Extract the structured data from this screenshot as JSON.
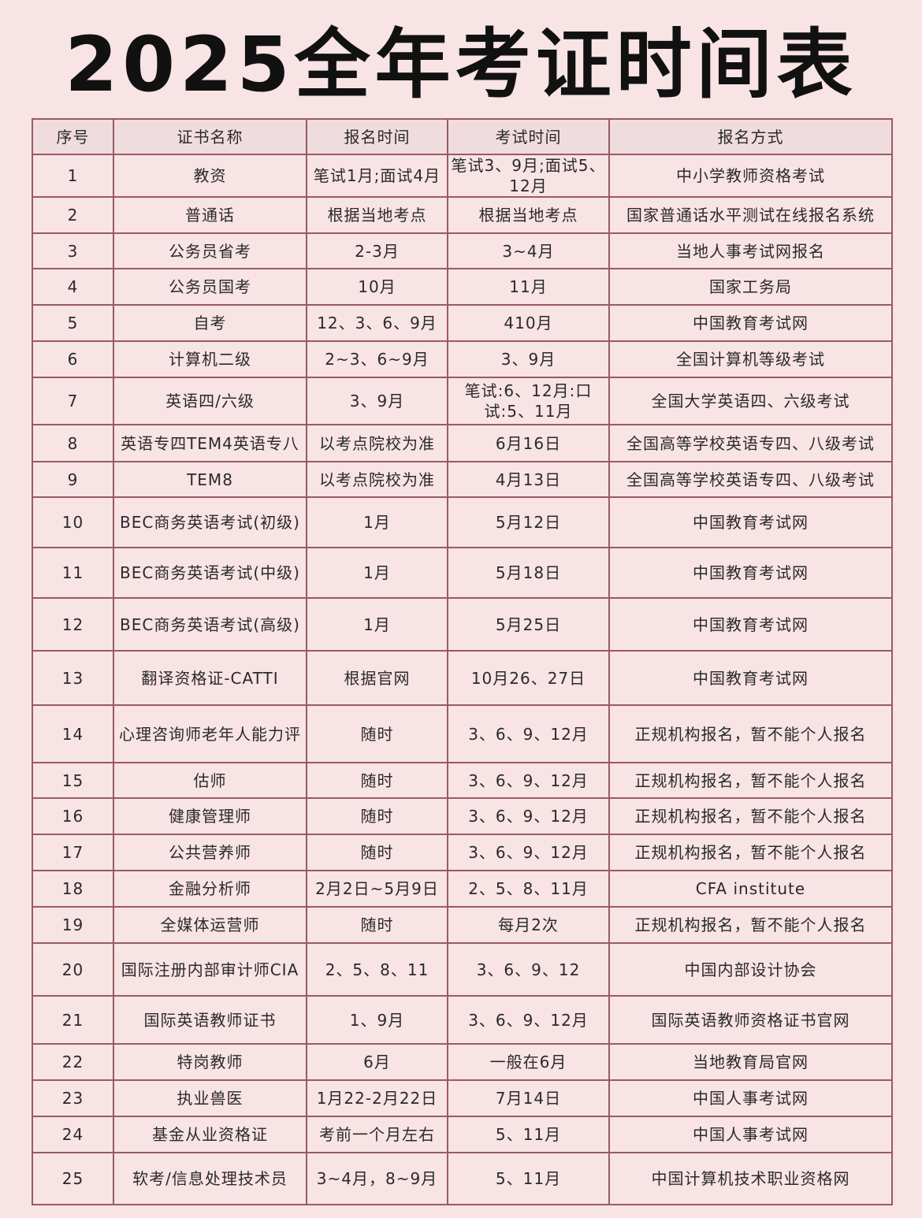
{
  "title": "2025全年考证时间表",
  "table": {
    "headers": [
      "序号",
      "证书名称",
      "报名时间",
      "考试时间",
      "报名方式"
    ],
    "rows": [
      [
        "1",
        "教资",
        "笔试1月;面试4月",
        "笔试3、9月;面试5、12月",
        "中小学教师资格考试"
      ],
      [
        "2",
        "普通话",
        "根据当地考点",
        "根据当地考点",
        "国家普通话水平测试在线报名系统"
      ],
      [
        "3",
        "公务员省考",
        "2-3月",
        "3~4月",
        "当地人事考试网报名"
      ],
      [
        "4",
        "公务员国考",
        "10月",
        "11月",
        "国家工务局"
      ],
      [
        "5",
        "自考",
        "12、3、6、9月",
        "410月",
        "中国教育考试网"
      ],
      [
        "6",
        "计算机二级",
        "2~3、6~9月",
        "3、9月",
        "全国计算机等级考试"
      ],
      [
        "7",
        "英语四/六级",
        "3、9月",
        "笔试:6、12月:口试:5、11月",
        "全国大学英语四、六级考试"
      ],
      [
        "8",
        "英语专四TEM4英语专八",
        "以考点院校为准",
        "6月16日",
        "全国高等学校英语专四、八级考试"
      ],
      [
        "9",
        "TEM8",
        "以考点院校为准",
        "4月13日",
        "全国高等学校英语专四、八级考试"
      ],
      [
        "10",
        "BEC商务英语考试(初级)",
        "1月",
        "5月12日",
        "中国教育考试网"
      ],
      [
        "11",
        "BEC商务英语考试(中级)",
        "1月",
        "5月18日",
        "中国教育考试网"
      ],
      [
        "12",
        "BEC商务英语考试(高级)",
        "1月",
        "5月25日",
        "中国教育考试网"
      ],
      [
        "13",
        "翻译资格证-CATTI",
        "根据官网",
        "10月26、27日",
        "中国教育考试网"
      ],
      [
        "14",
        "心理咨询师老年人能力评",
        "随时",
        "3、6、9、12月",
        "正规机构报名，暂不能个人报名"
      ],
      [
        "15",
        "估师",
        "随时",
        "3、6、9、12月",
        "正规机构报名，暂不能个人报名"
      ],
      [
        "16",
        "健康管理师",
        "随时",
        "3、6、9、12月",
        "正规机构报名，暂不能个人报名"
      ],
      [
        "17",
        "公共营养师",
        "随时",
        "3、6、9、12月",
        "正规机构报名，暂不能个人报名"
      ],
      [
        "18",
        "金融分析师",
        "2月2日~5月9日",
        "2、5、8、11月",
        "CFA institute"
      ],
      [
        "19",
        "全媒体运营师",
        "随时",
        "每月2次",
        "正规机构报名，暂不能个人报名"
      ],
      [
        "20",
        "国际注册内部审计师CIA",
        "2、5、8、11",
        "3、6、9、12",
        "中国内部设计协会"
      ],
      [
        "21",
        "国际英语教师证书",
        "1、9月",
        "3、6、9、12月",
        "国际英语教师资格证书官网"
      ],
      [
        "22",
        "特岗教师",
        "6月",
        "一般在6月",
        "当地教育局官网"
      ],
      [
        "23",
        "执业兽医",
        "1月22-2月22日",
        "7月14日",
        "中国人事考试网"
      ],
      [
        "24",
        "基金从业资格证",
        "考前一个月左右",
        "5、11月",
        "中国人事考试网"
      ],
      [
        "25",
        "软考/信息处理技术员",
        "3~4月，8~9月",
        "5、11月",
        "中国计算机技术职业资格网"
      ]
    ]
  }
}
